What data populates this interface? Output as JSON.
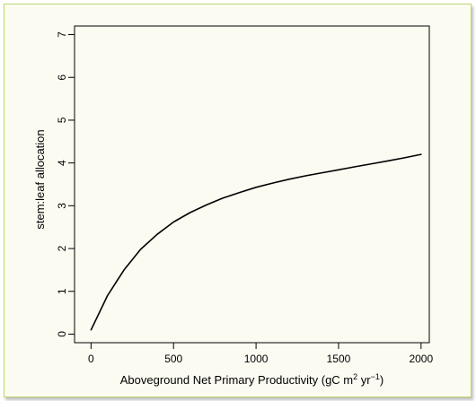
{
  "chart_data": {
    "type": "line",
    "xlabel": "Aboveground Net Primary Productivity (gC m",
    "xlabel_sup1": "2",
    "xlabel_mid": " yr",
    "xlabel_sup2": "−1",
    "xlabel_end": ")",
    "ylabel": "stem:leaf allocation",
    "xlim": [
      -100,
      2050
    ],
    "ylim": [
      -0.2,
      7.2
    ],
    "x_ticks": [
      0,
      500,
      1000,
      1500,
      2000
    ],
    "y_ticks": [
      0,
      1,
      2,
      3,
      4,
      5,
      6,
      7
    ],
    "grid": false,
    "series": [
      {
        "color": "#000000",
        "x": [
          0,
          100,
          200,
          300,
          400,
          500,
          600,
          700,
          800,
          900,
          1000,
          1100,
          1200,
          1300,
          1400,
          1500,
          1600,
          1700,
          1800,
          1900,
          2000
        ],
        "y": [
          0.1,
          0.9,
          1.5,
          1.98,
          2.33,
          2.62,
          2.84,
          3.02,
          3.18,
          3.31,
          3.43,
          3.53,
          3.62,
          3.7,
          3.77,
          3.84,
          3.91,
          3.98,
          4.05,
          4.12,
          4.2
        ]
      }
    ]
  }
}
